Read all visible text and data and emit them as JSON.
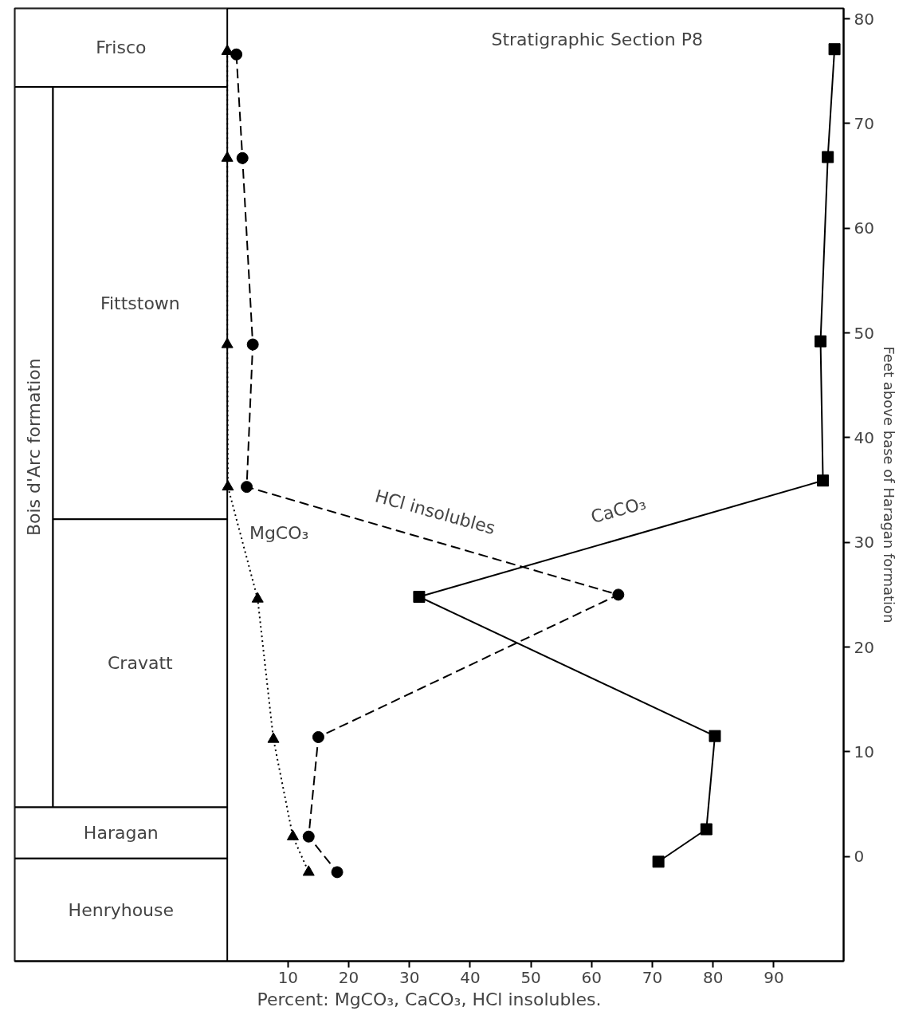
{
  "chart_data": {
    "type": "line",
    "title": "Stratigraphic Section P8",
    "xlabel": "Percent: MgCO₃, CaCO₃, HCl insolubles.",
    "ylabel": "Feet above base of Haragan formation",
    "series": [
      {
        "name": "MgCO₃",
        "color": "#000000",
        "marker": "triangle",
        "line_style": "dotted",
        "x": [
          0,
          0,
          0,
          0.1,
          5.0,
          7.6,
          10.8,
          13.4
        ],
        "values": [
          76.9,
          66.7,
          48.9,
          35.3,
          24.6,
          11.2,
          1.9,
          -1.5
        ]
      },
      {
        "name": "HCl insolubles",
        "color": "#000000",
        "marker": "circle",
        "line_style": "dashed",
        "x": [
          1.5,
          2.5,
          4.2,
          3.2,
          64.4,
          15.0,
          13.4,
          18.1
        ],
        "values": [
          76.6,
          66.7,
          48.9,
          35.3,
          25.0,
          11.4,
          1.9,
          -1.5
        ]
      },
      {
        "name": "CaCO₃",
        "color": "#000000",
        "marker": "square",
        "line_style": "solid",
        "x": [
          100,
          98.9,
          97.7,
          98.1,
          31.6,
          80.3,
          78.9,
          71.0
        ],
        "values": [
          77.1,
          66.8,
          49.2,
          35.9,
          24.8,
          11.5,
          2.6,
          -0.5
        ]
      }
    ],
    "bands": [
      {
        "axis": "y",
        "from": 4.7,
        "to": 73.5,
        "label": "Bois d'Arc formation"
      },
      {
        "axis": "y",
        "from": 73.5,
        "to": 81,
        "label": "Frisco"
      },
      {
        "axis": "y",
        "from": 32.2,
        "to": 73.5,
        "label": "Fittstown"
      },
      {
        "axis": "y",
        "from": 4.7,
        "to": 32.2,
        "label": "Cravatt"
      },
      {
        "axis": "y",
        "from": -0.2,
        "to": 4.7,
        "label": "Haragan"
      },
      {
        "axis": "y",
        "from": -10,
        "to": -0.2,
        "label": "Henryhouse"
      }
    ],
    "xlim": [
      -35,
      101.5
    ],
    "ylim": [
      -10,
      81
    ],
    "xticks": [
      10,
      20,
      30,
      40,
      50,
      60,
      70,
      80,
      90
    ],
    "yticks": [
      0,
      10,
      20,
      30,
      40,
      50,
      60,
      70,
      80
    ],
    "grid": false
  }
}
